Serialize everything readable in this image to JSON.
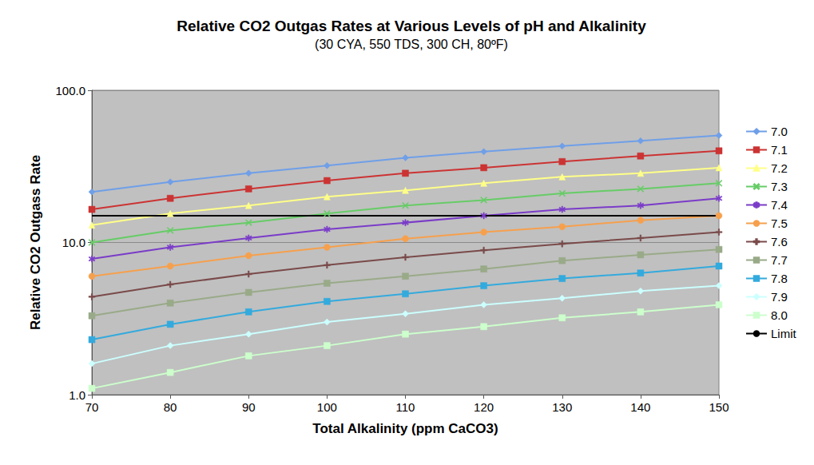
{
  "chart_data": {
    "type": "line",
    "title": "Relative CO2 Outgas Rates at Various Levels of pH and Alkalinity",
    "subtitle": "(30 CYA, 550 TDS, 300 CH, 80ºF)",
    "x_label": "Total Alkalinity (ppm CaCO3)",
    "y_label": "Relative CO2 Outgass Rate",
    "x": [
      70,
      80,
      90,
      100,
      110,
      120,
      130,
      140,
      150
    ],
    "xlim": [
      70,
      150
    ],
    "xticks": [
      70,
      80,
      90,
      100,
      110,
      120,
      130,
      140,
      150
    ],
    "ylim": [
      1,
      100
    ],
    "yticks": [
      {
        "value": 1,
        "label": "1.0"
      },
      {
        "value": 10,
        "label": "10.0"
      },
      {
        "value": 100,
        "label": "100.0"
      }
    ],
    "log": "y",
    "grid": true,
    "legend": "right",
    "series": [
      {
        "name": "7.0",
        "color": "#6f9fe8",
        "marker": "diamond",
        "values": [
          21.5,
          25,
          28.5,
          32,
          36,
          39.5,
          43,
          46.5,
          50.5
        ]
      },
      {
        "name": "7.1",
        "color": "#cc3333",
        "marker": "square",
        "values": [
          16.5,
          19.5,
          22.5,
          25.5,
          28.5,
          31,
          34,
          37,
          40
        ]
      },
      {
        "name": "7.2",
        "color": "#ffff88",
        "marker": "triangle",
        "values": [
          13,
          15.5,
          17.5,
          20,
          22,
          24.5,
          27,
          28.5,
          31
        ]
      },
      {
        "name": "7.3",
        "color": "#66cc66",
        "marker": "x",
        "values": [
          10,
          12,
          13.5,
          15.5,
          17.5,
          19,
          21,
          22.5,
          24.5
        ]
      },
      {
        "name": "7.4",
        "color": "#7a3cc8",
        "marker": "star",
        "values": [
          7.8,
          9.3,
          10.7,
          12.2,
          13.5,
          15,
          16.5,
          17.5,
          19.5
        ]
      },
      {
        "name": "7.5",
        "color": "#f6a04d",
        "marker": "circle",
        "values": [
          6,
          7,
          8.2,
          9.3,
          10.6,
          11.7,
          12.7,
          14,
          15
        ]
      },
      {
        "name": "7.6",
        "color": "#7a4a4a",
        "marker": "plus",
        "values": [
          4.4,
          5.3,
          6.2,
          7.1,
          8,
          8.9,
          9.8,
          10.7,
          11.7
        ]
      },
      {
        "name": "7.7",
        "color": "#99aa88",
        "marker": "dash",
        "values": [
          3.3,
          4,
          4.7,
          5.4,
          6,
          6.7,
          7.6,
          8.3,
          9
        ]
      },
      {
        "name": "7.8",
        "color": "#33aadd",
        "marker": "dash",
        "values": [
          2.3,
          2.9,
          3.5,
          4.1,
          4.6,
          5.2,
          5.8,
          6.3,
          7
        ]
      },
      {
        "name": "7.9",
        "color": "#ccffff",
        "marker": "diamond",
        "values": [
          1.6,
          2.1,
          2.5,
          3,
          3.4,
          3.9,
          4.3,
          4.8,
          5.2
        ]
      },
      {
        "name": "8.0",
        "color": "#ccffcc",
        "marker": "square",
        "values": [
          1.1,
          1.4,
          1.8,
          2.1,
          2.5,
          2.8,
          3.2,
          3.5,
          3.9
        ]
      },
      {
        "name": "Limit",
        "color": "#000000",
        "marker": "none",
        "values": [
          15,
          15,
          15,
          15,
          15,
          15,
          15,
          15,
          15
        ]
      }
    ]
  }
}
